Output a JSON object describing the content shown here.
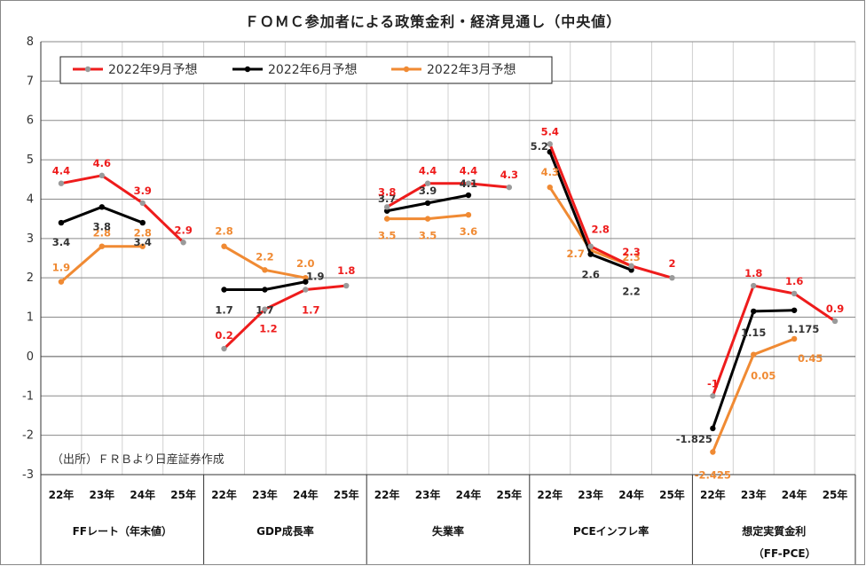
{
  "chart_data": {
    "type": "line",
    "title": "ＦＯＭＣ参加者による政策金利・経済見通し（中央値）",
    "source": "（出所）ＦＲＢより日産証券作成",
    "ylim": [
      -3,
      8
    ],
    "yticks": [
      "8",
      "7",
      "6",
      "5",
      "4",
      "3",
      "2",
      "1",
      "0",
      "-1",
      "-2",
      "-3"
    ],
    "grid": true,
    "legend_position": "top-left",
    "years": [
      "22年",
      "23年",
      "24年",
      "25年"
    ],
    "groups": [
      {
        "label": "FFレート（年末値）",
        "label2": ""
      },
      {
        "label": "GDP成長率",
        "label2": ""
      },
      {
        "label": "失業率",
        "label2": ""
      },
      {
        "label": "PCEインフレ率",
        "label2": ""
      },
      {
        "label": "想定実質金利",
        "label2": "（FF-PCE）"
      }
    ],
    "series": [
      {
        "name": "2022年9月予想",
        "color": "#ee1c1c",
        "label_color": "#ee1c1c",
        "values": [
          [
            4.4,
            4.6,
            3.9,
            2.9
          ],
          [
            0.2,
            1.2,
            1.7,
            1.8
          ],
          [
            3.8,
            4.4,
            4.4,
            4.3
          ],
          [
            5.4,
            2.8,
            2.3,
            2.0
          ],
          [
            -1.0,
            1.8,
            1.6,
            0.9
          ]
        ],
        "labels": [
          [
            "4.4",
            "4.6",
            "3.9",
            "2.9"
          ],
          [
            "0.2",
            "1.2",
            "1.7",
            "1.8"
          ],
          [
            "3.8",
            "4.4",
            "4.4",
            "4.3"
          ],
          [
            "5.4",
            "2.8",
            "2.3",
            "2"
          ],
          [
            "-1",
            "1.8",
            "1.6",
            "0.9"
          ]
        ]
      },
      {
        "name": "2022年6月予想",
        "color": "#000000",
        "label_color": "#333333",
        "values": [
          [
            3.4,
            3.8,
            3.4,
            null
          ],
          [
            1.7,
            1.7,
            1.9,
            null
          ],
          [
            3.7,
            3.9,
            4.1,
            null
          ],
          [
            5.2,
            2.6,
            2.2,
            null
          ],
          [
            -1.825,
            1.15,
            1.175,
            null
          ]
        ],
        "labels": [
          [
            "3.4",
            "3.8",
            "3.4",
            ""
          ],
          [
            "1.7",
            "1.7",
            "1.9",
            ""
          ],
          [
            "3.7",
            "3.9",
            "4.1",
            ""
          ],
          [
            "5.2",
            "2.6",
            "2.2",
            ""
          ],
          [
            "-1.825",
            "1.15",
            "1.175",
            ""
          ]
        ]
      },
      {
        "name": "2022年3月予想",
        "color": "#f08a33",
        "label_color": "#f08a33",
        "values": [
          [
            1.9,
            2.8,
            2.8,
            null
          ],
          [
            2.8,
            2.2,
            2.0,
            null
          ],
          [
            3.5,
            3.5,
            3.6,
            null
          ],
          [
            4.3,
            2.7,
            2.3,
            null
          ],
          [
            -2.425,
            0.05,
            0.45,
            null
          ]
        ],
        "labels": [
          [
            "1.9",
            "2.8",
            "2.8",
            ""
          ],
          [
            "2.8",
            "2.2",
            "2.0",
            ""
          ],
          [
            "3.5",
            "3.5",
            "3.6",
            ""
          ],
          [
            "4.3",
            "2.7",
            "2.3",
            ""
          ],
          [
            "-2.425",
            "0.05",
            "0.45",
            ""
          ]
        ]
      }
    ]
  }
}
